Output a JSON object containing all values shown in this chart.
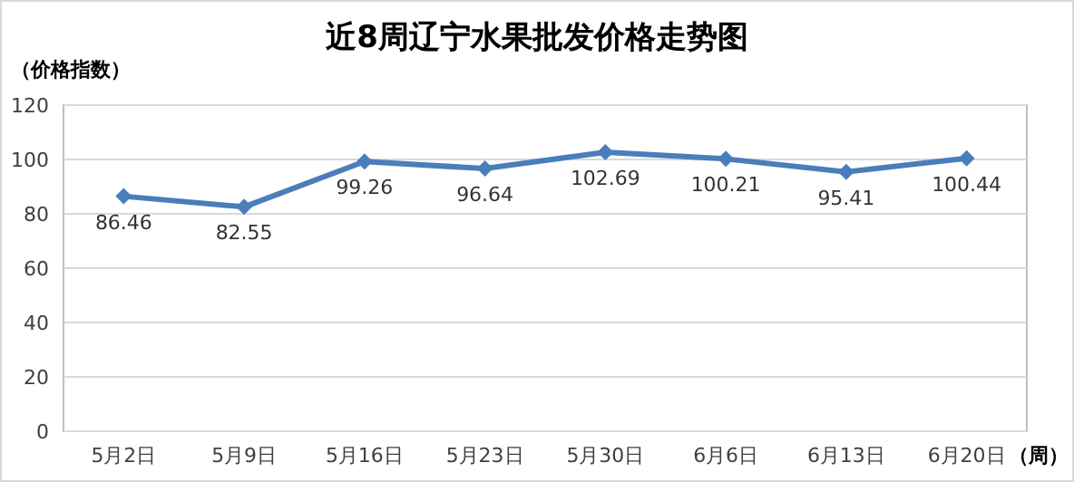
{
  "chart_data": {
    "type": "line",
    "title": "近8周辽宁水果批发价格走势图",
    "ylabel": "（价格指数）",
    "xlabel": "（周）",
    "categories": [
      "5月2日",
      "5月9日",
      "5月16日",
      "5月23日",
      "5月30日",
      "6月6日",
      "6月13日",
      "6月20日"
    ],
    "series": [
      {
        "color": "#4a7ebb",
        "values": [
          86.46,
          82.55,
          99.26,
          96.64,
          102.69,
          100.21,
          95.41,
          100.44
        ]
      }
    ],
    "ylim": [
      0,
      120
    ],
    "yticks": [
      0,
      20,
      40,
      60,
      80,
      100,
      120
    ],
    "grid": "y",
    "marker": "diamond",
    "line_style": "solid",
    "data_labels": true
  }
}
